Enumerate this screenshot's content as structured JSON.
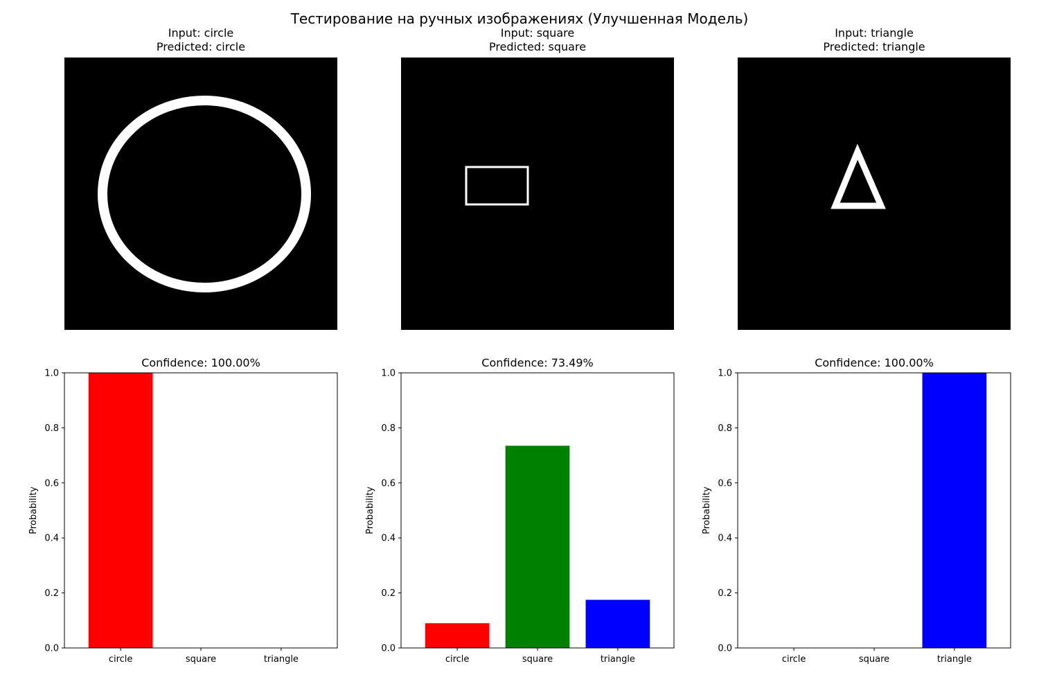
{
  "suptitle": "Тестирование на ручных изображениях (Улучшенная Модель)",
  "panels": [
    {
      "input_label": "Input: circle",
      "predicted_label": "Predicted: circle",
      "shape": "circle",
      "confidence_label": "Confidence: 100.00%"
    },
    {
      "input_label": "Input: square",
      "predicted_label": "Predicted: square",
      "shape": "square",
      "confidence_label": "Confidence: 73.49%"
    },
    {
      "input_label": "Input: triangle",
      "predicted_label": "Predicted: triangle",
      "shape": "triangle",
      "confidence_label": "Confidence: 100.00%"
    }
  ],
  "chart_data": [
    {
      "type": "bar",
      "title": "Confidence: 100.00%",
      "categories": [
        "circle",
        "square",
        "triangle"
      ],
      "values": [
        1.0,
        0.0,
        0.0
      ],
      "colors": [
        "#ff0000",
        "#008000",
        "#0000ff"
      ],
      "xlabel": "",
      "ylabel": "Probability",
      "ylim": [
        0,
        1
      ],
      "yticks": [
        "0.0",
        "0.2",
        "0.4",
        "0.6",
        "0.8",
        "1.0"
      ]
    },
    {
      "type": "bar",
      "title": "Confidence: 73.49%",
      "categories": [
        "circle",
        "square",
        "triangle"
      ],
      "values": [
        0.09,
        0.7349,
        0.175
      ],
      "colors": [
        "#ff0000",
        "#008000",
        "#0000ff"
      ],
      "xlabel": "",
      "ylabel": "Probability",
      "ylim": [
        0,
        1
      ],
      "yticks": [
        "0.0",
        "0.2",
        "0.4",
        "0.6",
        "0.8",
        "1.0"
      ]
    },
    {
      "type": "bar",
      "title": "Confidence: 100.00%",
      "categories": [
        "circle",
        "square",
        "triangle"
      ],
      "values": [
        0.0,
        0.0,
        1.0
      ],
      "colors": [
        "#ff0000",
        "#008000",
        "#0000ff"
      ],
      "xlabel": "",
      "ylabel": "Probability",
      "ylim": [
        0,
        1
      ],
      "yticks": [
        "0.0",
        "0.2",
        "0.4",
        "0.6",
        "0.8",
        "1.0"
      ]
    }
  ]
}
